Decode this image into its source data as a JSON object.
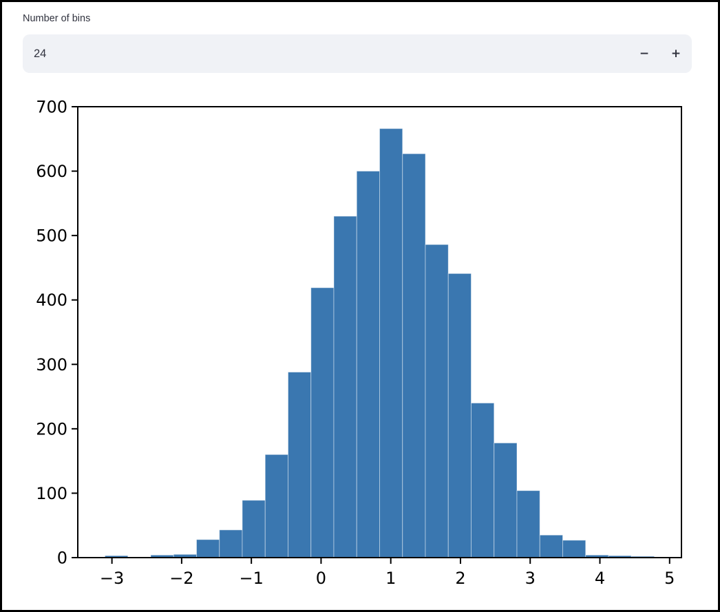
{
  "widget": {
    "label": "Number of bins",
    "value": "24",
    "minus_label": "−",
    "plus_label": "+"
  },
  "colors": {
    "bar_fill": "#3a77b0",
    "bar_edge": "rgba(255,255,255,0.45)",
    "axis": "#000000",
    "tick_text": "#000000",
    "input_bg": "#f0f2f6",
    "input_text": "#31333f",
    "frame": "#000000"
  },
  "chart_data": {
    "type": "histogram",
    "title": "",
    "xlabel": "",
    "ylabel": "",
    "bin_start": -3.1,
    "bin_width": 0.32833,
    "counts": [
      3,
      0,
      4,
      5,
      28,
      43,
      89,
      160,
      288,
      419,
      530,
      600,
      666,
      627,
      486,
      441,
      240,
      178,
      104,
      35,
      27,
      4,
      3,
      2
    ],
    "total_samples_approx": 5000,
    "xlim": [
      -3.49,
      5.17
    ],
    "ylim": [
      0,
      700
    ],
    "xticks": [
      -3,
      -2,
      -1,
      0,
      1,
      2,
      3,
      4,
      5
    ],
    "yticks": [
      0,
      100,
      200,
      300,
      400,
      500,
      600,
      700
    ],
    "grid": false,
    "legend": false
  }
}
